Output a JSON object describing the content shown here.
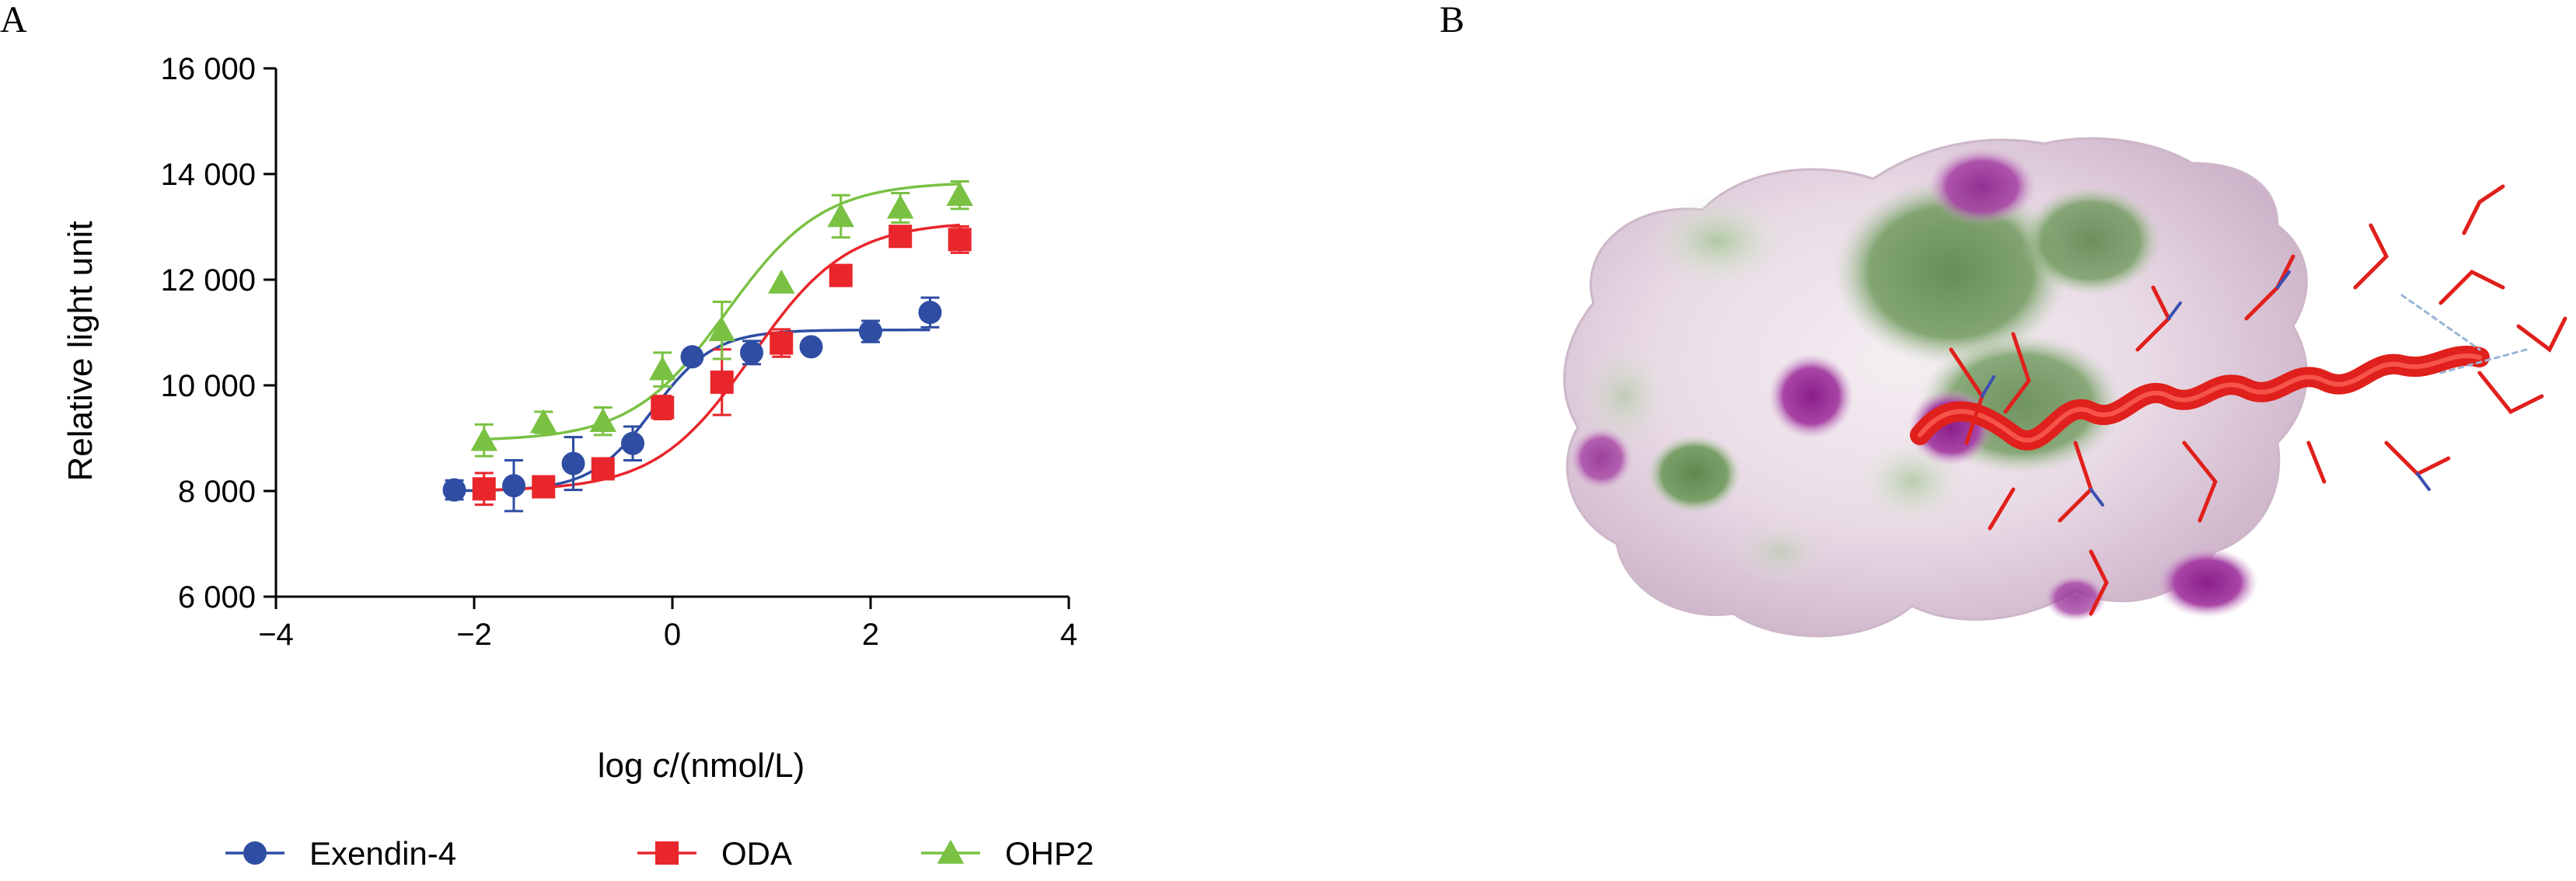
{
  "panels": {
    "a": "A",
    "b": "B"
  },
  "colors": {
    "exendin": "#2e4da3",
    "oda": "#e8262b",
    "ohp2": "#7ac143",
    "surface_green": "#5b8a47",
    "surface_purple": "#9b2a9a",
    "helix": "#e0201c"
  },
  "chart_data": {
    "type": "scatter",
    "xlabel_prefix": "log ",
    "xlabel_var": "c",
    "xlabel_unit": "/(nmol/L)",
    "ylabel": "Relative light unit",
    "xlim": [
      -4,
      4
    ],
    "ylim": [
      6000,
      16000
    ],
    "xticks": [
      -4,
      -2,
      0,
      2,
      4
    ],
    "xtick_labels": [
      "−4",
      "−2",
      "0",
      "2",
      "4"
    ],
    "yticks": [
      6000,
      8000,
      10000,
      12000,
      14000,
      16000
    ],
    "ytick_labels": [
      "6 000",
      "8 000",
      "10 000",
      "12 000",
      "14 000",
      "16 000"
    ],
    "grid": false,
    "legend_position": "bottom",
    "series": [
      {
        "name": "Exendin-4",
        "marker": "circle",
        "color": "#2e4da3",
        "x": [
          -2.2,
          -1.6,
          -1.0,
          -0.4,
          0.2,
          0.8,
          1.4,
          2.0,
          2.6
        ],
        "y": [
          8020,
          8100,
          8520,
          8900,
          10540,
          10620,
          10730,
          11020,
          11380
        ],
        "err": [
          180,
          480,
          500,
          320,
          120,
          220,
          0,
          200,
          280
        ],
        "fit": {
          "bottom": 8000,
          "top": 11050,
          "logEC50": -0.2,
          "hill": 1.4,
          "from": -2.2,
          "to": 2.6
        }
      },
      {
        "name": "ODA",
        "marker": "square",
        "color": "#e8262b",
        "x": [
          -1.9,
          -1.3,
          -0.7,
          -0.1,
          0.5,
          1.1,
          1.7,
          2.3,
          2.9
        ],
        "y": [
          8040,
          8080,
          8420,
          9580,
          10060,
          10800,
          12080,
          12820,
          12760
        ],
        "err": [
          300,
          0,
          0,
          220,
          620,
          260,
          0,
          0,
          250
        ],
        "fit": {
          "bottom": 8000,
          "top": 13100,
          "logEC50": 0.8,
          "hill": 0.9,
          "from": -1.9,
          "to": 2.9
        }
      },
      {
        "name": "OHP2",
        "marker": "triangle",
        "color": "#7ac143",
        "x": [
          -1.9,
          -1.3,
          -0.7,
          -0.1,
          0.5,
          1.1,
          1.7,
          2.3,
          2.9
        ],
        "y": [
          8960,
          9300,
          9320,
          10300,
          11040,
          11940,
          13200,
          13360,
          13600
        ],
        "err": [
          300,
          200,
          260,
          320,
          540,
          0,
          400,
          280,
          260
        ],
        "fit": {
          "bottom": 8950,
          "top": 13850,
          "logEC50": 0.55,
          "hill": 0.9,
          "from": -1.9,
          "to": 2.9
        }
      }
    ]
  }
}
